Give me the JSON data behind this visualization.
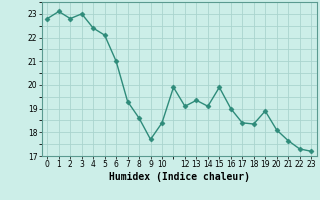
{
  "x": [
    0,
    1,
    2,
    3,
    4,
    5,
    6,
    7,
    8,
    9,
    10,
    11,
    12,
    13,
    14,
    15,
    16,
    17,
    18,
    19,
    20,
    21,
    22,
    23
  ],
  "y": [
    22.8,
    23.1,
    22.8,
    23.0,
    22.4,
    22.1,
    21.0,
    19.3,
    18.6,
    17.7,
    18.4,
    19.9,
    19.1,
    19.35,
    19.1,
    19.9,
    19.0,
    18.4,
    18.35,
    18.9,
    18.1,
    17.65,
    17.3,
    17.2
  ],
  "line_color": "#2e8b7a",
  "marker": "D",
  "marker_size": 2.5,
  "bg_color": "#cceee8",
  "grid_color": "#aad4ce",
  "xlabel": "Humidex (Indice chaleur)",
  "xlim": [
    -0.5,
    23.5
  ],
  "ylim": [
    17,
    23.5
  ],
  "yticks": [
    17,
    18,
    19,
    20,
    21,
    22,
    23
  ],
  "xticks": [
    0,
    1,
    2,
    3,
    4,
    5,
    6,
    7,
    8,
    9,
    10,
    12,
    13,
    14,
    15,
    16,
    17,
    18,
    19,
    20,
    21,
    22,
    23
  ],
  "xtick_labels": [
    "0",
    "1",
    "2",
    "3",
    "4",
    "5",
    "6",
    "7",
    "8",
    "9",
    "10",
    "12",
    "13",
    "14",
    "15",
    "16",
    "17",
    "18",
    "19",
    "20",
    "21",
    "22",
    "23"
  ],
  "tick_fontsize": 5.5,
  "label_fontsize": 7,
  "line_width": 1.0
}
